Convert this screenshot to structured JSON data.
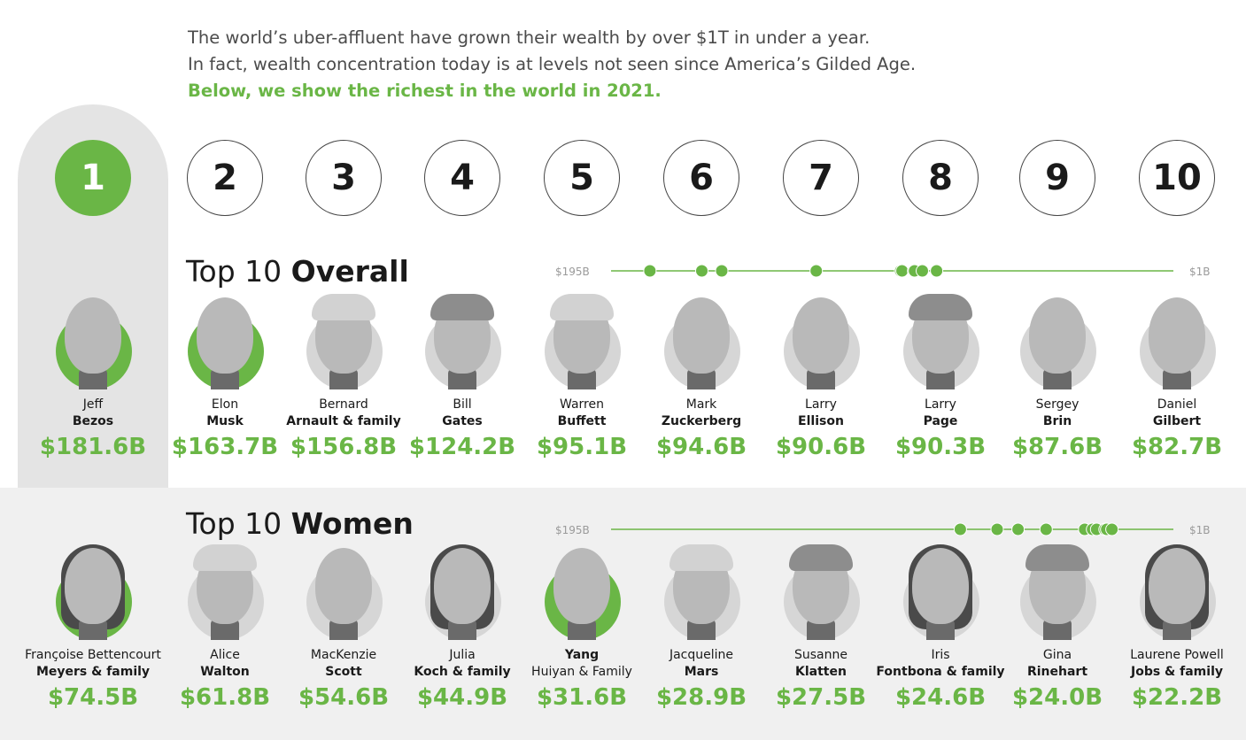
{
  "intro": {
    "line1": "The world’s uber-affluent have grown their wealth by over $1T in under a year.",
    "line2": "In fact, wealth concentration today is at levels not seen since America’s Gilded Age.",
    "line3": "Below, we show the richest in the world in 2021."
  },
  "ranks": [
    "1",
    "2",
    "3",
    "4",
    "5",
    "6",
    "7",
    "8",
    "9",
    "10"
  ],
  "colors": {
    "accent": "#6ab646",
    "band": "#f0f0f0",
    "pillar": "#e4e4e4",
    "text": "#1a1a1a"
  },
  "chart_data": [
    {
      "type": "scatter",
      "title_prefix": "Top 10",
      "title_bold": "Overall",
      "scale_max_label": "$195B",
      "scale_min_label": "$1B",
      "xlim": [
        195,
        1
      ],
      "people": [
        {
          "rank": "1",
          "first": "Jeff",
          "last": "Bezos",
          "worth": "$181.6B",
          "value": 181.6
        },
        {
          "rank": "2",
          "first": "Elon",
          "last": "Musk",
          "worth": "$163.7B",
          "value": 163.7
        },
        {
          "rank": "3",
          "first": "Bernard",
          "last": "Arnault & family",
          "worth": "$156.8B",
          "value": 156.8
        },
        {
          "rank": "4",
          "first": "Bill",
          "last": "Gates",
          "worth": "$124.2B",
          "value": 124.2
        },
        {
          "rank": "5",
          "first": "Warren",
          "last": "Buffett",
          "worth": "$95.1B",
          "value": 95.1
        },
        {
          "rank": "6",
          "first": "Mark",
          "last": "Zuckerberg",
          "worth": "$94.6B",
          "value": 94.6
        },
        {
          "rank": "7",
          "first": "Larry",
          "last": "Ellison",
          "worth": "$90.6B",
          "value": 90.6
        },
        {
          "rank": "8",
          "first": "Larry",
          "last": "Page",
          "worth": "$90.3B",
          "value": 90.3
        },
        {
          "rank": "9",
          "first": "Sergey",
          "last": "Brin",
          "worth": "$87.6B",
          "value": 87.6
        },
        {
          "rank": "10",
          "first": "Daniel",
          "last": "Gilbert",
          "worth": "$82.7B",
          "value": 82.7
        }
      ]
    },
    {
      "type": "scatter",
      "title_prefix": "Top 10",
      "title_bold": "Women",
      "scale_max_label": "$195B",
      "scale_min_label": "$1B",
      "xlim": [
        195,
        1
      ],
      "people": [
        {
          "rank": "1",
          "first": "Françoise Bettencourt",
          "last": "Meyers & family",
          "worth": "$74.5B",
          "value": 74.5
        },
        {
          "rank": "2",
          "first": "Alice",
          "last": "Walton",
          "worth": "$61.8B",
          "value": 61.8
        },
        {
          "rank": "3",
          "first": "MacKenzie",
          "last": "Scott",
          "worth": "$54.6B",
          "value": 54.6
        },
        {
          "rank": "4",
          "first": "Julia",
          "last": "Koch & family",
          "worth": "$44.9B",
          "value": 44.9
        },
        {
          "rank": "5",
          "first": "Yang",
          "last": "Huiyan & Family",
          "worth": "$31.6B",
          "value": 31.6
        },
        {
          "rank": "6",
          "first": "Jacqueline",
          "last": "Mars",
          "worth": "$28.9B",
          "value": 28.9
        },
        {
          "rank": "7",
          "first": "Susanne",
          "last": "Klatten",
          "worth": "$27.5B",
          "value": 27.5
        },
        {
          "rank": "8",
          "first": "Iris",
          "last": "Fontbona & family",
          "worth": "$24.6B",
          "value": 24.6
        },
        {
          "rank": "9",
          "first": "Gina",
          "last": "Rinehart",
          "worth": "$24.0B",
          "value": 24.0
        },
        {
          "rank": "10",
          "first": "Laurene Powell",
          "last": "Jobs & family",
          "worth": "$22.2B",
          "value": 22.2
        }
      ]
    }
  ]
}
